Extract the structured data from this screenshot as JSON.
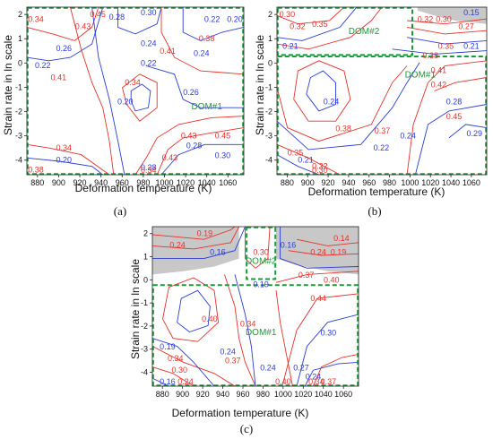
{
  "figure": {
    "panels": [
      "(a)",
      "(b)",
      "(c)"
    ]
  },
  "colors": {
    "red_contour": "#e8302a",
    "blue_contour": "#2a3bd8",
    "domain_green": "#1a9a3a",
    "instability_gray": "#c8c8c8"
  },
  "chart_data": [
    {
      "type": "contour",
      "panel": "(a)",
      "xlabel": "Deformation temperature (K)",
      "ylabel": "Strain rate in ln scale",
      "xlim": [
        870,
        1075
      ],
      "ylim": [
        -4.6,
        2.3
      ],
      "xticks": [
        880,
        900,
        920,
        940,
        960,
        980,
        1000,
        1020,
        1040,
        1060
      ],
      "yticks": [
        -4,
        -3,
        -2,
        -1,
        0,
        1,
        2
      ],
      "contour_labels": [
        {
          "text": "0.34",
          "x": 875,
          "y": 1.8,
          "color": "red"
        },
        {
          "text": "0.22",
          "x": 885,
          "y": -0.1,
          "color": "blue"
        },
        {
          "text": "0.26",
          "x": 905,
          "y": 0.6,
          "color": "blue"
        },
        {
          "text": "0.41",
          "x": 900,
          "y": -0.6,
          "color": "red"
        },
        {
          "text": "0.43",
          "x": 923,
          "y": 1.5,
          "color": "red"
        },
        {
          "text": "0.45",
          "x": 937,
          "y": 2.0,
          "color": "red"
        },
        {
          "text": "0.28",
          "x": 955,
          "y": 1.9,
          "color": "blue"
        },
        {
          "text": "0.30",
          "x": 985,
          "y": 2.2,
          "color": "blue"
        },
        {
          "text": "0.24",
          "x": 985,
          "y": 0.8,
          "color": "blue"
        },
        {
          "text": "0.22",
          "x": 985,
          "y": 0.0,
          "color": "blue"
        },
        {
          "text": "0.41",
          "x": 1003,
          "y": 0.5,
          "color": "red"
        },
        {
          "text": "0.38",
          "x": 1040,
          "y": 1.0,
          "color": "red"
        },
        {
          "text": "0.24",
          "x": 1035,
          "y": 0.4,
          "color": "blue"
        },
        {
          "text": "0.22",
          "x": 1045,
          "y": 1.8,
          "color": "blue"
        },
        {
          "text": "0.20",
          "x": 1068,
          "y": 1.8,
          "color": "blue"
        },
        {
          "text": "0.34",
          "x": 970,
          "y": -0.8,
          "color": "red"
        },
        {
          "text": "0.20",
          "x": 963,
          "y": -1.6,
          "color": "blue"
        },
        {
          "text": "0.26",
          "x": 1025,
          "y": -1.2,
          "color": "blue"
        },
        {
          "text": "0.43",
          "x": 1023,
          "y": -3.0,
          "color": "red"
        },
        {
          "text": "0.45",
          "x": 1055,
          "y": -3.0,
          "color": "red"
        },
        {
          "text": "0.28",
          "x": 1028,
          "y": -3.4,
          "color": "blue"
        },
        {
          "text": "0.30",
          "x": 1055,
          "y": -3.8,
          "color": "blue"
        },
        {
          "text": "0.34",
          "x": 905,
          "y": -3.5,
          "color": "red"
        },
        {
          "text": "0.20",
          "x": 905,
          "y": -4.0,
          "color": "blue"
        },
        {
          "text": "0.38",
          "x": 877,
          "y": -4.4,
          "color": "red"
        },
        {
          "text": "0.43",
          "x": 1005,
          "y": -3.9,
          "color": "red"
        },
        {
          "text": "0.28",
          "x": 985,
          "y": -4.3,
          "color": "blue"
        },
        {
          "text": "0.34",
          "x": 985,
          "y": -4.55,
          "color": "red"
        }
      ],
      "domains": [
        {
          "label": "DOM#1",
          "x": [
            870,
            1075
          ],
          "y": [
            -4.6,
            2.3
          ],
          "label_at": [
            1040,
            -1.9
          ]
        }
      ]
    },
    {
      "type": "contour",
      "panel": "(b)",
      "xlabel": "Deformation temperature (K)",
      "ylabel": "Strain rate in ln scale",
      "xlim": [
        870,
        1075
      ],
      "ylim": [
        -4.6,
        2.3
      ],
      "xticks": [
        880,
        900,
        920,
        940,
        960,
        980,
        1000,
        1020,
        1040,
        1060
      ],
      "yticks": [
        -4,
        -3,
        -2,
        -1,
        0,
        1,
        2
      ],
      "contour_labels": [
        {
          "text": "0.30",
          "x": 880,
          "y": 2.0,
          "color": "red"
        },
        {
          "text": "0.32",
          "x": 890,
          "y": 1.5,
          "color": "red"
        },
        {
          "text": "0.35",
          "x": 912,
          "y": 1.6,
          "color": "red"
        },
        {
          "text": "0.21",
          "x": 883,
          "y": 0.7,
          "color": "blue"
        },
        {
          "text": "0.32",
          "x": 1015,
          "y": 1.8,
          "color": "red"
        },
        {
          "text": "0.30",
          "x": 1033,
          "y": 1.8,
          "color": "red"
        },
        {
          "text": "0.27",
          "x": 1055,
          "y": 1.5,
          "color": "red"
        },
        {
          "text": "0.15",
          "x": 1060,
          "y": 2.1,
          "color": "blue"
        },
        {
          "text": "0.35",
          "x": 1035,
          "y": 0.7,
          "color": "red"
        },
        {
          "text": "0.21",
          "x": 1060,
          "y": 0.7,
          "color": "blue"
        },
        {
          "text": "0.38",
          "x": 1020,
          "y": 0.3,
          "color": "red"
        },
        {
          "text": "0.41",
          "x": 1028,
          "y": -0.3,
          "color": "red"
        },
        {
          "text": "0.42",
          "x": 1028,
          "y": -0.9,
          "color": "red"
        },
        {
          "text": "0.45",
          "x": 1043,
          "y": -2.2,
          "color": "red"
        },
        {
          "text": "0.28",
          "x": 1043,
          "y": -1.6,
          "color": "blue"
        },
        {
          "text": "0.29",
          "x": 1063,
          "y": -2.9,
          "color": "blue"
        },
        {
          "text": "0.24",
          "x": 923,
          "y": -1.6,
          "color": "blue"
        },
        {
          "text": "0.38",
          "x": 935,
          "y": -2.7,
          "color": "red"
        },
        {
          "text": "0.37",
          "x": 973,
          "y": -2.8,
          "color": "red"
        },
        {
          "text": "0.24",
          "x": 998,
          "y": -3.0,
          "color": "blue"
        },
        {
          "text": "0.22",
          "x": 972,
          "y": -3.5,
          "color": "blue"
        },
        {
          "text": "0.35",
          "x": 888,
          "y": -3.7,
          "color": "red"
        },
        {
          "text": "0.21",
          "x": 898,
          "y": -4.0,
          "color": "blue"
        },
        {
          "text": "0.32",
          "x": 912,
          "y": -4.25,
          "color": "red"
        },
        {
          "text": "0.30",
          "x": 912,
          "y": -4.5,
          "color": "red"
        }
      ],
      "domains": [
        {
          "label": "DOM#2",
          "x": [
            870,
            1003
          ],
          "y": [
            0.3,
            2.3
          ],
          "label_at": [
            955,
            1.2
          ]
        },
        {
          "label": "DOM#1",
          "x": [
            870,
            1075
          ],
          "y": [
            -4.6,
            0.3
          ],
          "label_at": [
            1010,
            -0.6
          ]
        }
      ]
    },
    {
      "type": "contour",
      "panel": "(c)",
      "xlabel": "Deformation temperature (K)",
      "ylabel": "Strain rate in ln scale",
      "xlim": [
        870,
        1075
      ],
      "ylim": [
        -4.6,
        2.3
      ],
      "xticks": [
        880,
        900,
        920,
        940,
        960,
        980,
        1000,
        1020,
        1040,
        1060
      ],
      "yticks": [
        -4,
        -3,
        -2,
        -1,
        0,
        1,
        2
      ],
      "contour_labels": [
        {
          "text": "0.19",
          "x": 922,
          "y": 2.0,
          "color": "red"
        },
        {
          "text": "0.24",
          "x": 895,
          "y": 1.5,
          "color": "red"
        },
        {
          "text": "0.16",
          "x": 935,
          "y": 1.2,
          "color": "blue"
        },
        {
          "text": "0.30",
          "x": 978,
          "y": 1.2,
          "color": "red"
        },
        {
          "text": "0.16",
          "x": 1005,
          "y": 1.5,
          "color": "blue"
        },
        {
          "text": "0.14",
          "x": 1058,
          "y": 1.8,
          "color": "red"
        },
        {
          "text": "0.24",
          "x": 1035,
          "y": 1.2,
          "color": "red"
        },
        {
          "text": "0.19",
          "x": 1055,
          "y": 1.2,
          "color": "red"
        },
        {
          "text": "0.37",
          "x": 1023,
          "y": 0.2,
          "color": "red"
        },
        {
          "text": "0.19",
          "x": 978,
          "y": -0.2,
          "color": "blue"
        },
        {
          "text": "0.44",
          "x": 1035,
          "y": -0.8,
          "color": "red"
        },
        {
          "text": "0.40",
          "x": 927,
          "y": -1.7,
          "color": "red"
        },
        {
          "text": "0.34",
          "x": 965,
          "y": -1.9,
          "color": "red"
        },
        {
          "text": "0.24",
          "x": 945,
          "y": -3.1,
          "color": "blue"
        },
        {
          "text": "0.37",
          "x": 950,
          "y": -3.5,
          "color": "red"
        },
        {
          "text": "0.30",
          "x": 1045,
          "y": -2.3,
          "color": "blue"
        },
        {
          "text": "0.19",
          "x": 885,
          "y": -2.9,
          "color": "blue"
        },
        {
          "text": "0.34",
          "x": 893,
          "y": -3.4,
          "color": "red"
        },
        {
          "text": "0.30",
          "x": 897,
          "y": -3.9,
          "color": "red"
        },
        {
          "text": "0.24",
          "x": 903,
          "y": -4.4,
          "color": "red"
        },
        {
          "text": "0.16",
          "x": 885,
          "y": -4.4,
          "color": "blue"
        },
        {
          "text": "0.24",
          "x": 985,
          "y": -3.8,
          "color": "blue"
        },
        {
          "text": "0.27",
          "x": 1018,
          "y": -3.8,
          "color": "blue"
        },
        {
          "text": "0.24",
          "x": 1030,
          "y": -4.2,
          "color": "blue"
        },
        {
          "text": "0.40",
          "x": 1000,
          "y": -4.5,
          "color": "red"
        },
        {
          "text": "0.34",
          "x": 1033,
          "y": -4.55,
          "color": "red"
        },
        {
          "text": "0.37",
          "x": 1045,
          "y": -4.4,
          "color": "red"
        },
        {
          "text": "0.40",
          "x": 1048,
          "y": 0.0,
          "color": "red"
        }
      ],
      "domains": [
        {
          "label": "DOM#2",
          "x": [
            963,
            993
          ],
          "y": [
            0.0,
            2.3
          ],
          "label_at": [
            978,
            0.7
          ]
        },
        {
          "label": "DOM#1",
          "x": [
            870,
            1075
          ],
          "y": [
            -4.6,
            -0.2
          ],
          "label_at": [
            978,
            -2.4
          ]
        }
      ]
    }
  ]
}
